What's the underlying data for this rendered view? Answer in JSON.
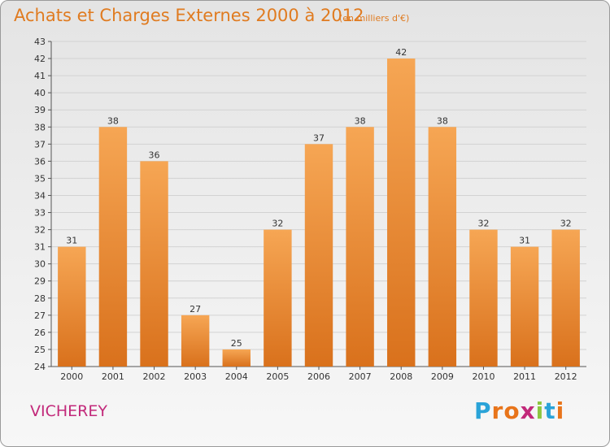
{
  "header": {
    "title": "Achats et Charges Externes 2000 à 2012",
    "subtitle": "(en milliers d'€)"
  },
  "footer": {
    "commune": "VICHEREY",
    "logo_text": "Proxiti",
    "logo_letters": [
      {
        "char": "P",
        "color": "#2aa3d8"
      },
      {
        "char": "r",
        "color": "#e8741a"
      },
      {
        "char": "o",
        "color": "#e8741a"
      },
      {
        "char": "x",
        "color": "#c2297a"
      },
      {
        "char": "i",
        "color": "#8cc63f"
      },
      {
        "char": "t",
        "color": "#2aa3d8"
      },
      {
        "char": "i",
        "color": "#e8741a"
      }
    ]
  },
  "colors": {
    "bar_light": "#f6a654",
    "bar_dark": "#d9711c",
    "title": "#e07b20",
    "commune": "#c2297a"
  },
  "chart_data": {
    "type": "bar",
    "title": "Achats et Charges Externes 2000 à 2012",
    "subtitle": "(en milliers d'€)",
    "categories": [
      "2000",
      "2001",
      "2002",
      "2003",
      "2004",
      "2005",
      "2006",
      "2007",
      "2008",
      "2009",
      "2010",
      "2011",
      "2012"
    ],
    "values": [
      31,
      38,
      36,
      27,
      25,
      32,
      37,
      38,
      42,
      38,
      32,
      31,
      32
    ],
    "xlabel": "",
    "ylabel": "",
    "ylim": [
      24,
      43
    ],
    "yticks": [
      24,
      25,
      26,
      27,
      28,
      29,
      30,
      31,
      32,
      33,
      34,
      35,
      36,
      37,
      38,
      39,
      40,
      41,
      42,
      43
    ],
    "grid": true,
    "legend": "none"
  }
}
